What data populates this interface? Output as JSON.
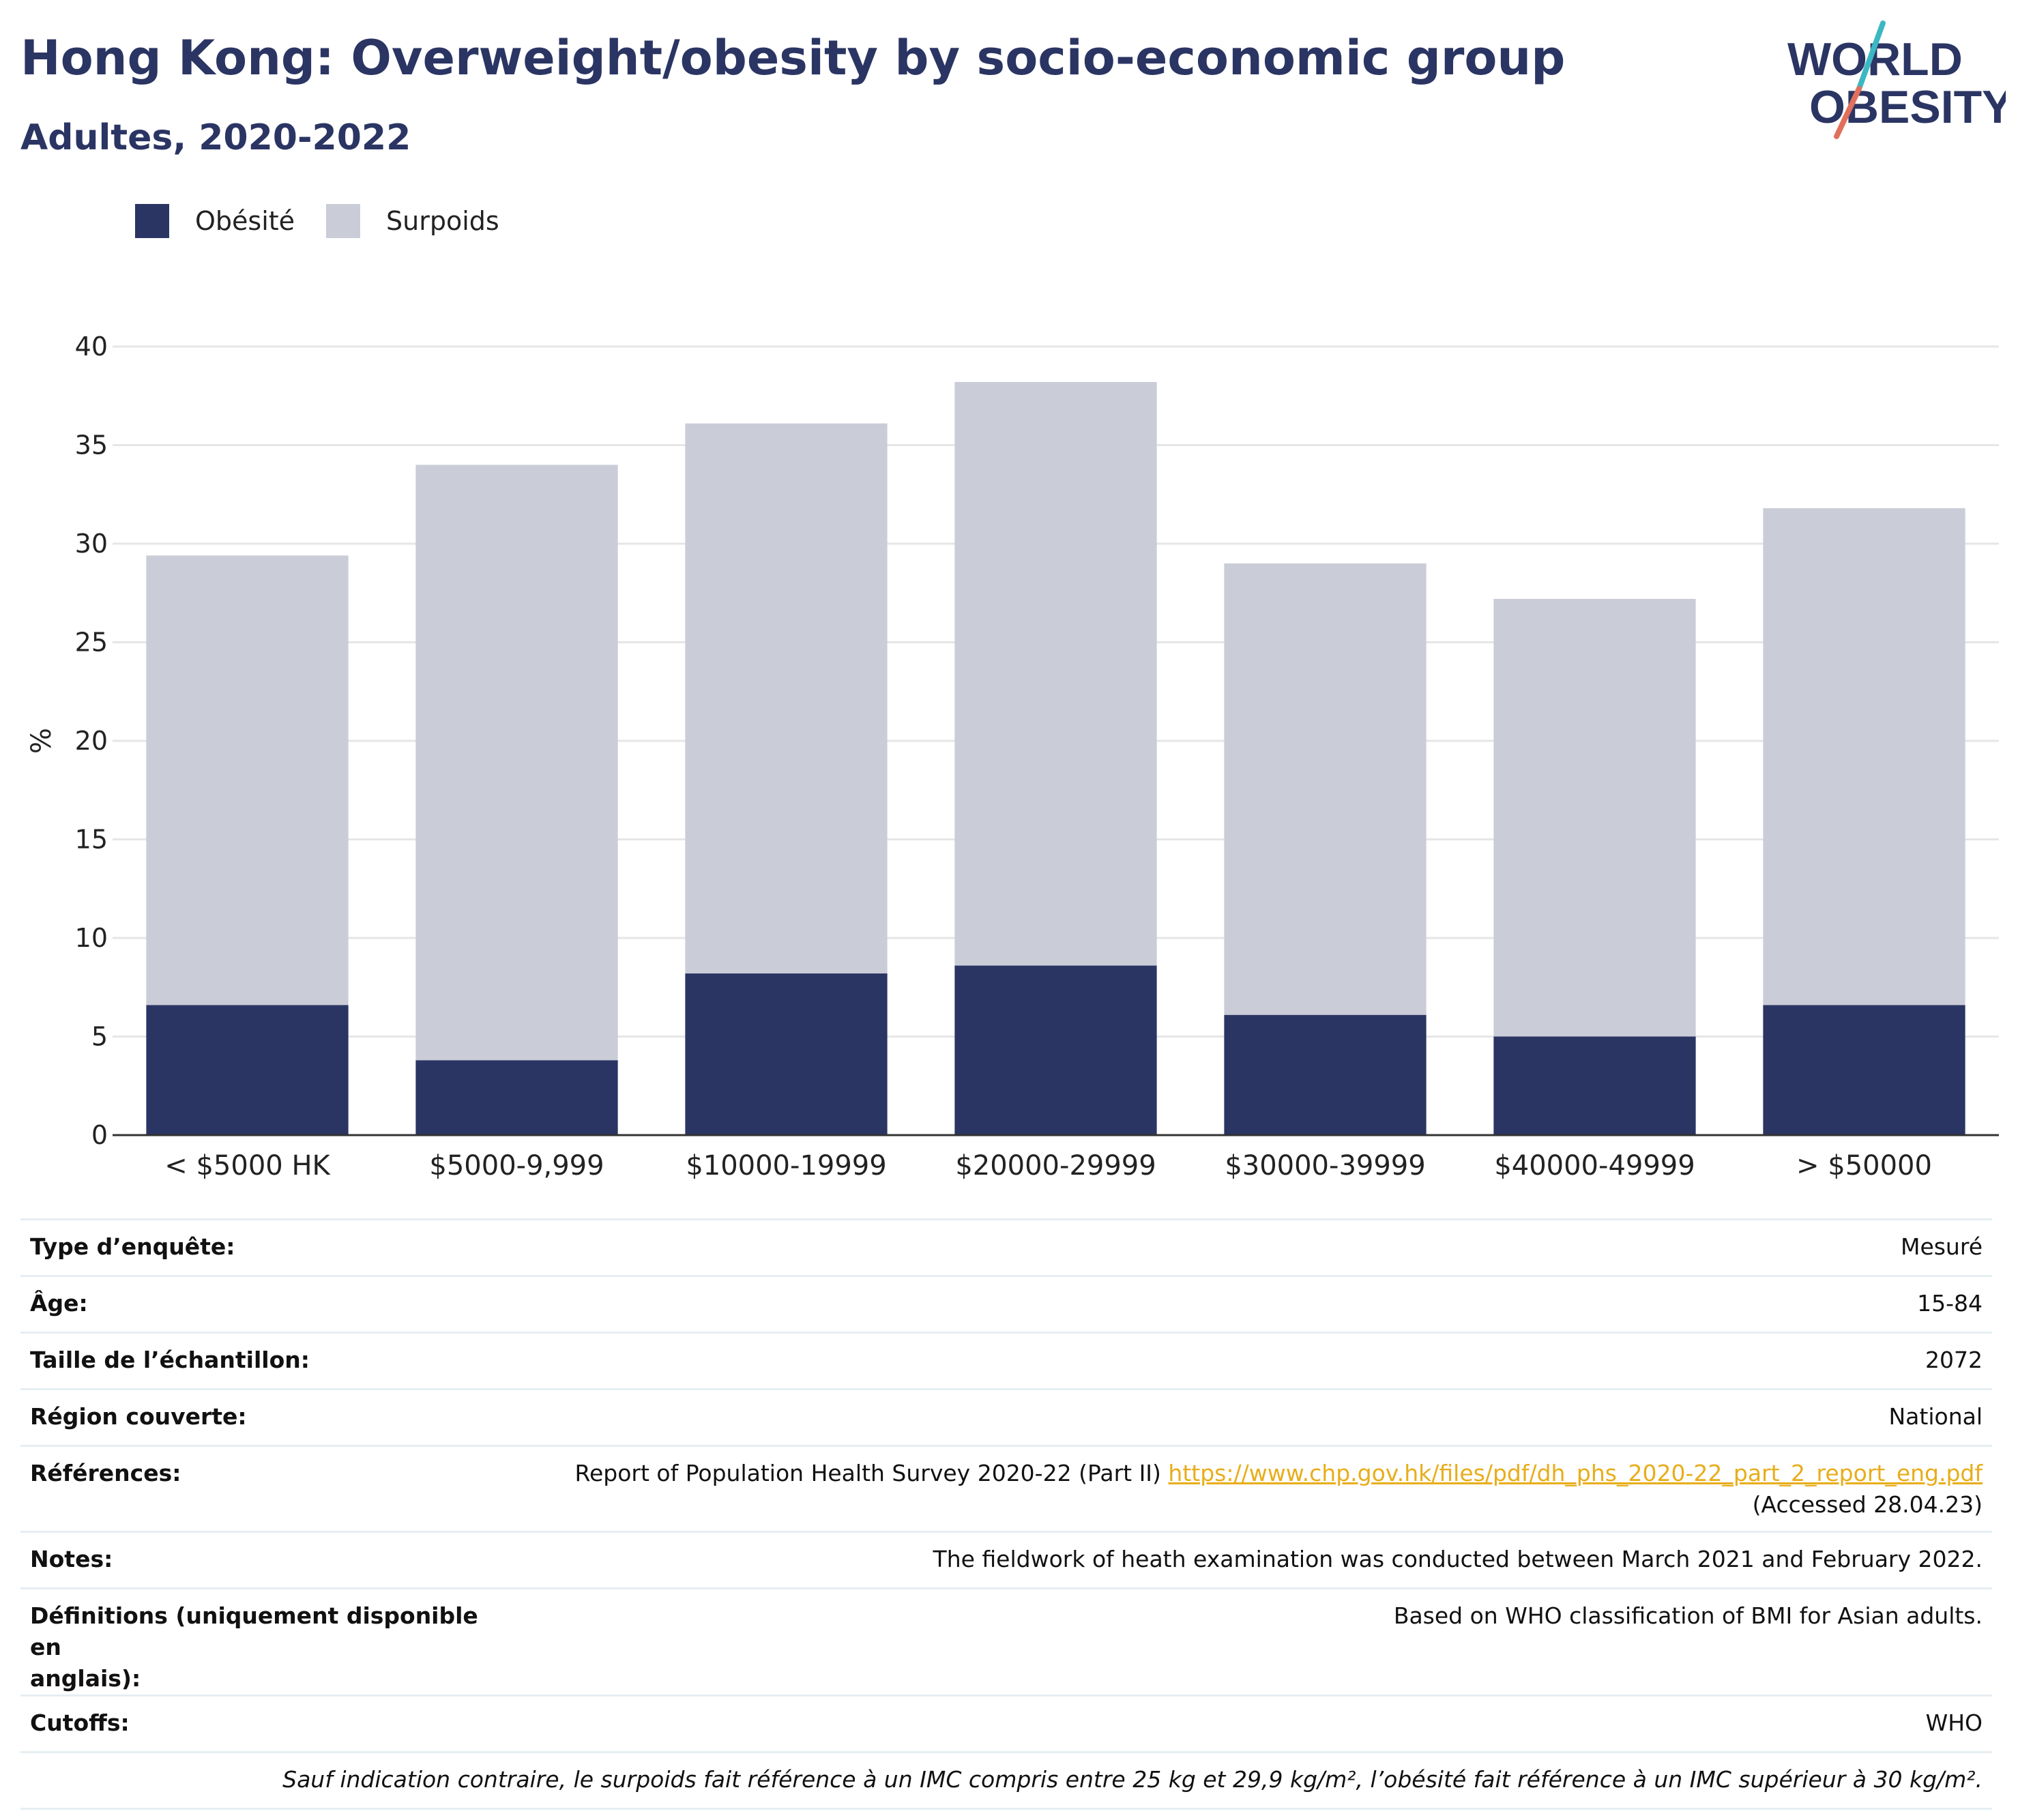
{
  "header": {
    "title": "Hong Kong: Overweight/obesity by socio-economic group",
    "subtitle": "Adultes, 2020-2022"
  },
  "logo": {
    "line1": "WORLD",
    "line2": "OBESITY"
  },
  "colors": {
    "obesity": "#2b3563",
    "overweight": "#cacdd8",
    "title": "#2b3563",
    "link": "#e8ad1a"
  },
  "chart_data": {
    "type": "bar",
    "stacked": true,
    "categories": [
      "< $5000 HK",
      "$5000-9,999",
      "$10000-19999",
      "$20000-29999",
      "$30000-39999",
      "$40000-49999",
      "> $50000"
    ],
    "series": [
      {
        "name": "Obésité",
        "color": "#2b3563",
        "values": [
          6.6,
          3.8,
          8.2,
          8.6,
          6.1,
          5.0,
          6.6
        ]
      },
      {
        "name": "Surpoids",
        "color": "#cacdd8",
        "values": [
          22.8,
          30.2,
          27.9,
          29.6,
          22.9,
          22.2,
          25.2
        ]
      }
    ],
    "ylabel": "%",
    "ylim": [
      0,
      40
    ],
    "yticks": [
      "0",
      "5",
      "10",
      "15",
      "20",
      "25",
      "30",
      "35",
      "40"
    ],
    "grid": true,
    "legend": "top-left"
  },
  "info": {
    "rows": [
      {
        "label": "Type d’enquête:",
        "value": "Mesuré"
      },
      {
        "label": "Âge:",
        "value": "15-84"
      },
      {
        "label": "Taille de l’échantillon:",
        "value": "2072"
      },
      {
        "label": "Région couverte:",
        "value": "National"
      }
    ],
    "references": {
      "label": "Références:",
      "text": "Report of Population Health Survey 2020-22 (Part II)",
      "link": "https://www.chp.gov.hk/files/pdf/dh_phs_2020-22_part_2_report_eng.pdf",
      "accessed": "(Accessed 28.04.23)"
    },
    "notes": {
      "label": "Notes:",
      "value": "The fieldwork of heath examination was conducted between March 2021 and February 2022."
    },
    "definitions": {
      "label_line1": "Définitions (uniquement disponible en",
      "label_line2": "anglais):",
      "value": "Based on WHO classification of BMI for Asian adults."
    },
    "cutoffs": {
      "label": "Cutoffs:",
      "value": "WHO"
    },
    "footnote": "Sauf indication contraire, le surpoids fait référence à un IMC compris entre 25 kg et 29,9 kg/m², l’obésité fait référence à un IMC supérieur à 30 kg/m²."
  }
}
